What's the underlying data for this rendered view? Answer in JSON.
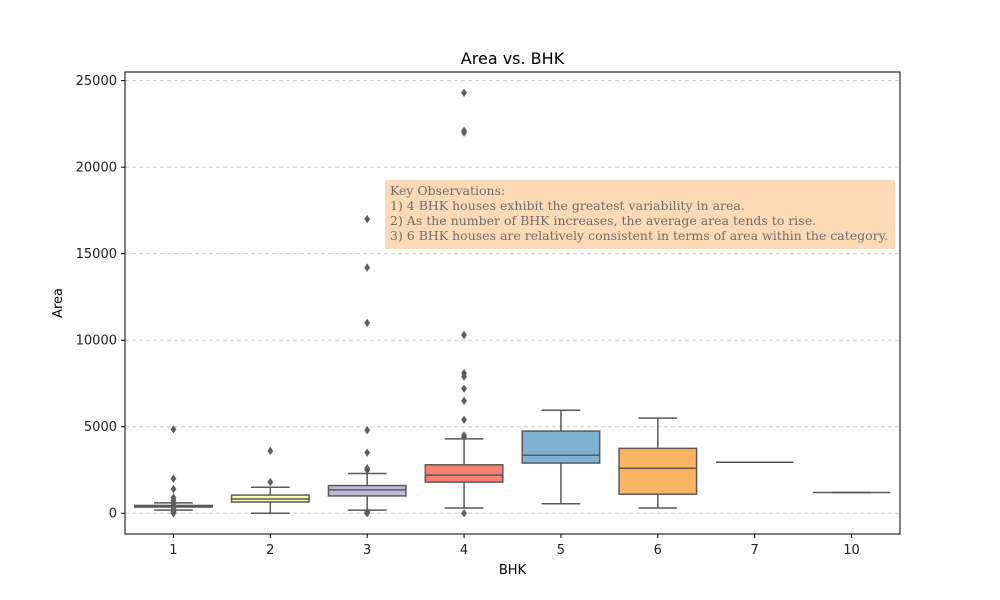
{
  "chart_data": {
    "type": "box",
    "title": "Area vs. BHK",
    "xlabel": "BHK",
    "ylabel": "Area",
    "ylim": [
      -1200,
      25500
    ],
    "yticks": [
      0,
      5000,
      10000,
      15000,
      20000,
      25000
    ],
    "grid": "y-dashed",
    "categories": [
      "1",
      "2",
      "3",
      "4",
      "5",
      "6",
      "7",
      "10"
    ],
    "boxes": [
      {
        "category": "1",
        "whisker_low": 180,
        "q1": 360,
        "median": 410,
        "q3": 450,
        "whisker_high": 600,
        "color": "#8dd3c7",
        "outliers": [
          0,
          50,
          100,
          180,
          260,
          560,
          620,
          750,
          900,
          1400,
          2000,
          4850
        ]
      },
      {
        "category": "2",
        "whisker_low": 0,
        "q1": 650,
        "median": 820,
        "q3": 1050,
        "whisker_high": 1500,
        "color": "#ffffb3",
        "outliers": [
          1800,
          3600
        ]
      },
      {
        "category": "3",
        "whisker_low": 180,
        "q1": 1000,
        "median": 1350,
        "q3": 1600,
        "whisker_high": 2300,
        "color": "#bebada",
        "outliers": [
          0,
          50,
          100,
          2500,
          2600,
          3500,
          4800,
          11000,
          14200,
          17000
        ]
      },
      {
        "category": "4",
        "whisker_low": 300,
        "q1": 1800,
        "median": 2200,
        "q3": 2800,
        "whisker_high": 4300,
        "color": "#fb8072",
        "outliers": [
          0,
          4400,
          4500,
          5400,
          6500,
          7200,
          7900,
          8100,
          10300,
          22000,
          22100,
          24300
        ]
      },
      {
        "category": "5",
        "whisker_low": 550,
        "q1": 2900,
        "median": 3350,
        "q3": 4750,
        "whisker_high": 5950,
        "color": "#80b1d3",
        "outliers": []
      },
      {
        "category": "6",
        "whisker_low": 300,
        "q1": 1100,
        "median": 2600,
        "q3": 3750,
        "whisker_high": 5500,
        "color": "#fdb462",
        "outliers": []
      },
      {
        "category": "7",
        "whisker_low": 2950,
        "q1": 2950,
        "median": 2950,
        "q3": 2950,
        "whisker_high": 2950,
        "color": "#b3de69",
        "outliers": []
      },
      {
        "category": "10",
        "whisker_low": 1200,
        "q1": 1200,
        "median": 1200,
        "q3": 1200,
        "whisker_high": 1200,
        "color": "#fccde5",
        "outliers": []
      }
    ],
    "annotation": {
      "lines": [
        "Key Observations:",
        "1) 4 BHK houses exhibit the greatest variability in area.",
        "2) As the number of BHK increases, the average area tends to rise.",
        "3) 6 BHK houses are relatively consistent in terms of area within the category."
      ],
      "background": "#fdd9b5",
      "text_color": "#6f6f6f"
    }
  }
}
